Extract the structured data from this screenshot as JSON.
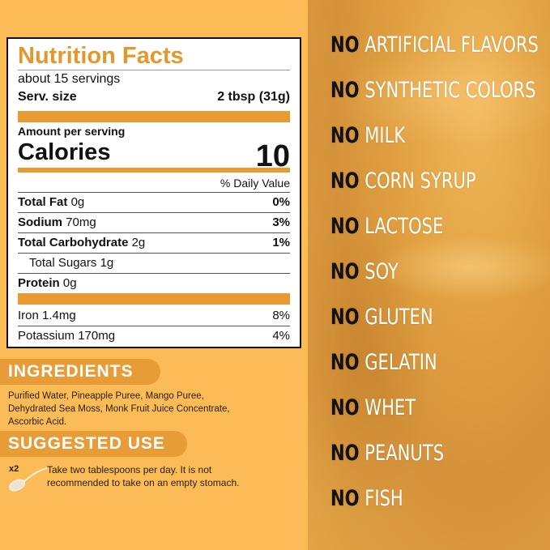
{
  "nutrition": {
    "title": "Nutrition Facts",
    "servings": "about 15 servings",
    "serv_size_label": "Serv. size",
    "serv_size_value": "2 tbsp (31g)",
    "amount_per_serving": "Amount per serving",
    "calories_label": "Calories",
    "calories_value": "10",
    "dv_header": "% Daily Value",
    "rows": [
      {
        "label": "Total Fat",
        "amount": "0g",
        "dv": "0%"
      },
      {
        "label": "Sodium",
        "amount": "70mg",
        "dv": "3%"
      },
      {
        "label": "Total Carbohydrate",
        "amount": "2g",
        "dv": "1%"
      },
      {
        "label": "Total Sugars",
        "amount": "1g",
        "dv": ""
      },
      {
        "label": "Protein",
        "amount": "0g",
        "dv": ""
      },
      {
        "label": "Iron",
        "amount": "1.4mg",
        "dv": "8%"
      },
      {
        "label": "Potassium",
        "amount": "170mg",
        "dv": "4%"
      }
    ]
  },
  "ingredients": {
    "heading": "INGREDIENTS",
    "lines": [
      "Purified Water, Pineapple Puree, Mango Puree,",
      "Dehydrated Sea Moss, Monk Fruit Juice Concentrate,",
      "Ascorbic Acid."
    ]
  },
  "suggested": {
    "heading": "SUGGESTED USE",
    "multiplier": "x2",
    "lines": [
      "Take two tablespoons per day. It is not",
      "recommended to take on an empty stomach."
    ],
    "icon": "spoon-icon"
  },
  "claims": {
    "prefix": "NO",
    "items": [
      "ARTIFICIAL FLAVORS",
      "SYNTHETIC COLORS",
      "MILK",
      "CORN SYRUP",
      "LACTOSE",
      "SOY",
      "GLUTEN",
      "GELATIN",
      "WHET",
      "PEANUTS",
      "FISH"
    ]
  },
  "colors": {
    "accent": "#e89a33",
    "background": "#fbbb57"
  }
}
